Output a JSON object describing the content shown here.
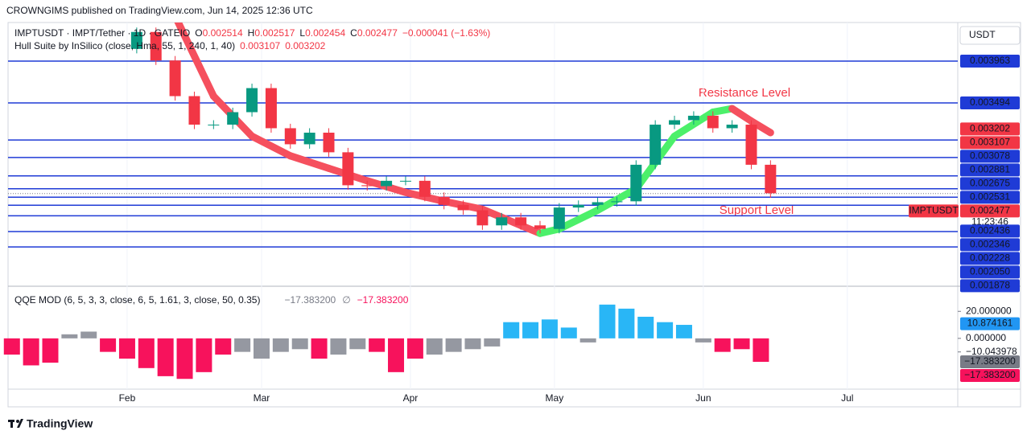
{
  "header": "CROWNGIMS published on TradingView.com, Jun 14, 2025 12:36 UTC",
  "footer": "TradingView",
  "chart_data": [
    {
      "type": "candlestick",
      "symbol": "IMPTUSDT · IMPT/Tether · 1D · GATEIO",
      "ohlc_legend": [
        {
          "label": "O",
          "value": 0.002514
        },
        {
          "label": "H",
          "value": 0.002517
        },
        {
          "label": "L",
          "value": 0.002454
        },
        {
          "label": "C",
          "value": 0.002477
        }
      ],
      "change": "−0.000041 (−1.63%)",
      "x": [
        34,
        38,
        42,
        46,
        50,
        54,
        58,
        62,
        66,
        70,
        74,
        78,
        82,
        86,
        90,
        94,
        98,
        102,
        106,
        110,
        114,
        118,
        122,
        126,
        130,
        134,
        138,
        142,
        146,
        150,
        154,
        158,
        162,
        166
      ],
      "open": [
        0.0041,
        0.00429,
        0.00397,
        0.00357,
        0.00325,
        0.00325,
        0.00339,
        0.00366,
        0.00321,
        0.00303,
        0.00316,
        0.00294,
        0.00257,
        0.00256,
        0.00262,
        0.00262,
        0.00244,
        0.00235,
        0.00229,
        0.00212,
        0.00221,
        0.00212,
        0.00208,
        0.00232,
        0.00235,
        0.00238,
        0.00239,
        0.0028,
        0.00325,
        0.0033,
        0.00335,
        0.00321,
        0.00325,
        0.0028
      ],
      "high": [
        0.00434,
        0.00434,
        0.00402,
        0.00362,
        0.0033,
        0.00344,
        0.00371,
        0.00371,
        0.00326,
        0.00321,
        0.00321,
        0.00299,
        0.00262,
        0.00267,
        0.00267,
        0.00267,
        0.00249,
        0.0024,
        0.00234,
        0.00226,
        0.00226,
        0.00217,
        0.00237,
        0.0024,
        0.00243,
        0.00244,
        0.00285,
        0.0033,
        0.00335,
        0.0034,
        0.0034,
        0.0033,
        0.0033,
        0.00285
      ],
      "low": [
        0.00405,
        0.00392,
        0.00352,
        0.0032,
        0.0032,
        0.0032,
        0.00334,
        0.00316,
        0.00298,
        0.00298,
        0.00289,
        0.00252,
        0.00251,
        0.00251,
        0.00257,
        0.00239,
        0.0023,
        0.00224,
        0.00207,
        0.00207,
        0.00207,
        0.00203,
        0.00203,
        0.00227,
        0.0023,
        0.00233,
        0.00234,
        0.00275,
        0.0032,
        0.00325,
        0.00316,
        0.00316,
        0.00275,
        0.00243
      ],
      "close": [
        0.00429,
        0.00397,
        0.00357,
        0.00325,
        0.00325,
        0.00339,
        0.00366,
        0.00321,
        0.00303,
        0.00316,
        0.00294,
        0.00257,
        0.00256,
        0.00262,
        0.00262,
        0.00244,
        0.00235,
        0.00229,
        0.00212,
        0.00221,
        0.00212,
        0.00208,
        0.00232,
        0.00235,
        0.00238,
        0.00239,
        0.0028,
        0.00325,
        0.0033,
        0.00335,
        0.00321,
        0.00325,
        0.0028,
        0.00248
      ],
      "up_color": "#089981",
      "down_color": "#f23645",
      "hull": {
        "name": "Hull Suite by InSilico (close, Hma, 55, 1, 240, 1, 40)",
        "last_values": [
          0.003107,
          0.003202
        ],
        "x": [
          42,
          50,
          58,
          66,
          74,
          82,
          90,
          98,
          106,
          114,
          118,
          122,
          130,
          138,
          146,
          154,
          158,
          162,
          166
        ],
        "values": [
          0.00447,
          0.00357,
          0.00312,
          0.0029,
          0.00276,
          0.00262,
          0.00249,
          0.00239,
          0.0023,
          0.00212,
          0.00203,
          0.00208,
          0.00229,
          0.00253,
          0.00312,
          0.00339,
          0.00343,
          0.00329,
          0.00316
        ],
        "up_color": "#4cf06a",
        "down_color": "#f5505e",
        "badge_color": "#f23645"
      },
      "xlim": [
        7.2,
        205
      ],
      "xticks": [
        {
          "value": 32,
          "label": "Feb"
        },
        {
          "value": 60,
          "label": "Mar"
        },
        {
          "value": 91,
          "label": "Apr"
        },
        {
          "value": 121,
          "label": "May"
        },
        {
          "value": 152,
          "label": "Jun"
        },
        {
          "value": 182,
          "label": "Jul"
        }
      ],
      "ylim": [
        0.001446,
        0.004396
      ],
      "axis_unit": "USDT",
      "levels": [
        0.003963,
        0.003494,
        0.003078,
        0.002881,
        0.002675,
        0.002531,
        0.002436,
        0.002346,
        0.002228,
        {
          "value": 0.00205,
          "label": "0.002050"
        },
        0.001878
      ],
      "level_color": "#1f3bd6",
      "last_price": {
        "symbol": "IMPTUSDT",
        "value": 0.002477,
        "countdown": "11:23:46",
        "color": "#f23645"
      },
      "annotations": [
        "Resistance Level",
        "Support Level"
      ]
    },
    {
      "type": "histogram",
      "name": "QQE MOD (6, 5, 3, 3, close, 6, 5, 1.61, 3, close, 50, 0.35)",
      "legend_values": [
        {
          "value": -17.3832,
          "label": "−17.383200"
        },
        {
          "value": -17.3832,
          "label": "−17.383200"
        }
      ],
      "legend_symbol": "∅",
      "x": [
        8,
        12,
        16,
        20,
        24,
        28,
        32,
        36,
        40,
        44,
        48,
        52,
        56,
        60,
        64,
        68,
        72,
        76,
        80,
        84,
        88,
        92,
        96,
        100,
        104,
        108,
        112,
        116,
        120,
        124,
        128,
        132,
        136,
        140,
        144,
        148,
        152,
        156,
        160,
        164
      ],
      "values": [
        -12,
        -20,
        -18,
        3,
        5,
        -10,
        -15,
        -22,
        -28,
        -30,
        -25,
        -12,
        -10,
        -15,
        -10,
        -8,
        -15,
        -12,
        -8,
        -10,
        -25,
        -15,
        -12,
        -10,
        -8,
        -6,
        12,
        12,
        14,
        8,
        -3,
        25,
        22,
        16,
        12,
        10,
        -3,
        -10,
        -8,
        -17.3832
      ],
      "colors": [
        "#f7125c",
        "#f7125c",
        "#f7125c",
        "#9598a1",
        "#9598a1",
        "#f7125c",
        "#f7125c",
        "#f7125c",
        "#f7125c",
        "#f7125c",
        "#f7125c",
        "#f7125c",
        "#9598a1",
        "#9598a1",
        "#9598a1",
        "#9598a1",
        "#f7125c",
        "#9598a1",
        "#9598a1",
        "#f7125c",
        "#f7125c",
        "#f7125c",
        "#9598a1",
        "#9598a1",
        "#9598a1",
        "#9598a1",
        "#29b6f6",
        "#29b6f6",
        "#29b6f6",
        "#29b6f6",
        "#9598a1",
        "#29b6f6",
        "#29b6f6",
        "#29b6f6",
        "#29b6f6",
        "#29b6f6",
        "#9598a1",
        "#f7125c",
        "#f7125c",
        "#f7125c"
      ],
      "ylim": [
        -37,
        38
      ],
      "yticks": [
        {
          "value": 20,
          "label": "20.000000"
        },
        {
          "value": 0,
          "label": "0.000000"
        },
        {
          "value": -10.043978,
          "label": "−10.043978"
        }
      ],
      "badges": [
        {
          "value": 10.874161,
          "color": "#2196f3"
        },
        {
          "value": -17.3832,
          "label": "−17.383200",
          "color": "#787b86"
        },
        {
          "value": -17.3832,
          "label": "−17.383200",
          "color": "#f7125c"
        }
      ]
    }
  ]
}
